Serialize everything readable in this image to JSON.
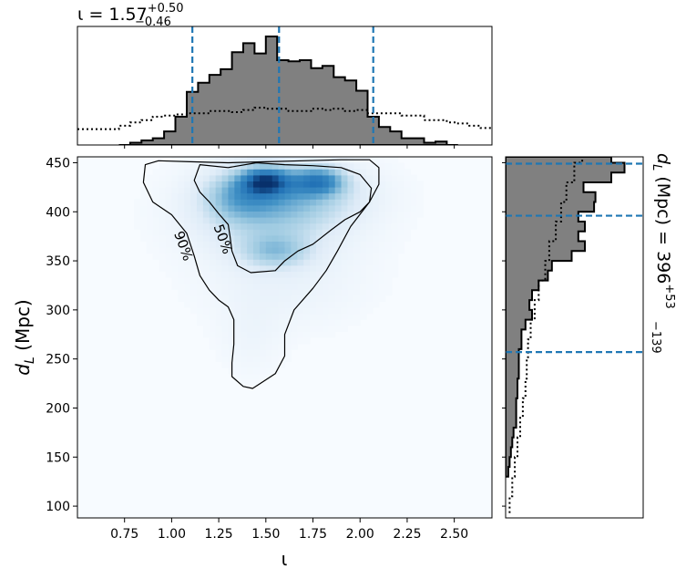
{
  "chart_data": {
    "type": "heatmap",
    "joint": {
      "xlabel": "ι",
      "ylabel_var": "d",
      "ylabel_sub": "L",
      "ylabel_unit": " (Mpc)",
      "xlim": [
        0.5,
        2.7
      ],
      "ylim": [
        88,
        456
      ],
      "xticks": [
        "0.75",
        "1.00",
        "1.25",
        "1.50",
        "1.75",
        "2.00",
        "2.25",
        "2.50"
      ],
      "yticks": [
        "100",
        "150",
        "200",
        "250",
        "300",
        "350",
        "400",
        "450"
      ],
      "contours": [
        {
          "label": "50%",
          "points": [
            [
              1.15,
              448
            ],
            [
              1.3,
              445
            ],
            [
              1.45,
              450
            ],
            [
              1.6,
              448
            ],
            [
              1.75,
              447
            ],
            [
              1.9,
              445
            ],
            [
              2.0,
              438
            ],
            [
              2.06,
              424
            ],
            [
              2.05,
              410
            ],
            [
              2.0,
              400
            ],
            [
              1.92,
              392
            ],
            [
              1.85,
              382
            ],
            [
              1.75,
              367
            ],
            [
              1.67,
              360
            ],
            [
              1.6,
              350
            ],
            [
              1.55,
              340
            ],
            [
              1.42,
              338
            ],
            [
              1.35,
              345
            ],
            [
              1.32,
              360
            ],
            [
              1.31,
              375
            ],
            [
              1.3,
              387
            ],
            [
              1.25,
              398
            ],
            [
              1.2,
              410
            ],
            [
              1.15,
              420
            ],
            [
              1.12,
              432
            ],
            [
              1.15,
              448
            ]
          ]
        },
        {
          "label": "90%",
          "points": [
            [
              0.86,
              448
            ],
            [
              0.93,
              452
            ],
            [
              1.1,
              451
            ],
            [
              1.3,
              450
            ],
            [
              1.5,
              451
            ],
            [
              1.7,
              452
            ],
            [
              1.9,
              453
            ],
            [
              2.05,
              453
            ],
            [
              2.1,
              445
            ],
            [
              2.1,
              428
            ],
            [
              2.05,
              410
            ],
            [
              1.95,
              385
            ],
            [
              1.88,
              360
            ],
            [
              1.82,
              340
            ],
            [
              1.75,
              322
            ],
            [
              1.65,
              300
            ],
            [
              1.6,
              275
            ],
            [
              1.6,
              253
            ],
            [
              1.55,
              235
            ],
            [
              1.47,
              225
            ],
            [
              1.43,
              220
            ],
            [
              1.38,
              222
            ],
            [
              1.32,
              232
            ],
            [
              1.32,
              246
            ],
            [
              1.33,
              265
            ],
            [
              1.33,
              290
            ],
            [
              1.3,
              303
            ],
            [
              1.25,
              310
            ],
            [
              1.2,
              320
            ],
            [
              1.15,
              335
            ],
            [
              1.12,
              355
            ],
            [
              1.08,
              378
            ],
            [
              1.0,
              397
            ],
            [
              0.9,
              410
            ],
            [
              0.85,
              430
            ],
            [
              0.86,
              448
            ]
          ]
        }
      ],
      "density_blobs": [
        {
          "x": 1.5,
          "y": 432,
          "sx": 0.09,
          "sy": 10,
          "w": 1.0
        },
        {
          "x": 1.78,
          "y": 432,
          "sx": 0.1,
          "sy": 10,
          "w": 0.8
        },
        {
          "x": 1.62,
          "y": 418,
          "sx": 0.28,
          "sy": 22,
          "w": 0.55
        },
        {
          "x": 1.35,
          "y": 418,
          "sx": 0.13,
          "sy": 18,
          "w": 0.4
        },
        {
          "x": 1.55,
          "y": 360,
          "sx": 0.13,
          "sy": 12,
          "w": 0.45
        },
        {
          "x": 1.5,
          "y": 390,
          "sx": 0.28,
          "sy": 25,
          "w": 0.3
        },
        {
          "x": 1.6,
          "y": 330,
          "sx": 0.3,
          "sy": 35,
          "w": 0.14
        },
        {
          "x": 1.42,
          "y": 270,
          "sx": 0.12,
          "sy": 30,
          "w": 0.1
        },
        {
          "x": 1.55,
          "y": 400,
          "sx": 0.45,
          "sy": 60,
          "w": 0.06
        }
      ]
    },
    "iota_marginal": {
      "title_prefix": "ι = 1.57",
      "title_sup": "+0.50",
      "title_sub": "−0.46",
      "quantiles": [
        1.11,
        1.57,
        2.07
      ],
      "hist_edges": [
        0.72,
        0.78,
        0.84,
        0.9,
        0.96,
        1.02,
        1.08,
        1.14,
        1.2,
        1.26,
        1.32,
        1.38,
        1.44,
        1.5,
        1.56,
        1.62,
        1.68,
        1.74,
        1.8,
        1.86,
        1.92,
        1.98,
        2.04,
        2.1,
        2.16,
        2.22,
        2.28,
        2.34,
        2.4,
        2.46,
        2.52
      ],
      "hist_values": [
        0.0,
        0.02,
        0.04,
        0.06,
        0.12,
        0.25,
        0.47,
        0.55,
        0.62,
        0.67,
        0.82,
        0.9,
        0.81,
        0.96,
        0.75,
        0.74,
        0.75,
        0.68,
        0.7,
        0.6,
        0.57,
        0.48,
        0.25,
        0.16,
        0.12,
        0.06,
        0.06,
        0.02,
        0.03,
        0.0
      ],
      "prior_x": [
        0.5,
        0.72,
        0.78,
        0.84,
        0.9,
        0.96,
        1.02,
        1.08,
        1.14,
        1.2,
        1.26,
        1.32,
        1.38,
        1.44,
        1.5,
        1.56,
        1.62,
        1.68,
        1.74,
        1.8,
        1.86,
        1.92,
        1.98,
        2.04,
        2.1,
        2.16,
        2.22,
        2.28,
        2.34,
        2.4,
        2.46,
        2.52,
        2.58,
        2.64,
        2.7
      ],
      "prior_y": [
        0.14,
        0.17,
        0.2,
        0.22,
        0.25,
        0.26,
        0.27,
        0.28,
        0.28,
        0.3,
        0.3,
        0.29,
        0.31,
        0.33,
        0.32,
        0.32,
        0.3,
        0.3,
        0.32,
        0.31,
        0.32,
        0.3,
        0.31,
        0.28,
        0.28,
        0.28,
        0.26,
        0.26,
        0.22,
        0.22,
        0.2,
        0.19,
        0.17,
        0.15,
        0.14
      ],
      "ymax": 1.0
    },
    "dl_marginal": {
      "title_var": "d",
      "title_sub": "L",
      "title_rest": " (Mpc) = 396",
      "title_sup": "+53",
      "title_low": "−139",
      "quantiles": [
        257,
        396,
        449
      ],
      "hist_edges": [
        130,
        140,
        150,
        160,
        170,
        180,
        190,
        200,
        210,
        220,
        230,
        240,
        250,
        260,
        270,
        280,
        290,
        300,
        310,
        320,
        330,
        340,
        350,
        360,
        370,
        380,
        390,
        400,
        410,
        420,
        430,
        440,
        450,
        456
      ],
      "hist_values": [
        0.02,
        0.03,
        0.04,
        0.05,
        0.06,
        0.08,
        0.08,
        0.08,
        0.09,
        0.09,
        0.1,
        0.1,
        0.1,
        0.12,
        0.12,
        0.15,
        0.2,
        0.18,
        0.2,
        0.25,
        0.32,
        0.35,
        0.5,
        0.6,
        0.55,
        0.6,
        0.55,
        0.67,
        0.68,
        0.59,
        0.8,
        0.9,
        0.8
      ],
      "prior_y": [
        93,
        110,
        130,
        150,
        170,
        190,
        210,
        230,
        250,
        270,
        290,
        310,
        330,
        350,
        370,
        390,
        410,
        430,
        450,
        456
      ],
      "prior_x": [
        0.03,
        0.05,
        0.07,
        0.09,
        0.11,
        0.13,
        0.15,
        0.16,
        0.17,
        0.19,
        0.22,
        0.25,
        0.3,
        0.33,
        0.38,
        0.42,
        0.46,
        0.52,
        0.58,
        0.62
      ],
      "xmax": 1.0
    },
    "colors": {
      "hist_fill": "#808080",
      "hist_edge": "#000000",
      "quantile_line": "#1f77b4",
      "contour_line": "#000000",
      "cmap_low": "#f7fbff",
      "cmap_high": "#08306b"
    }
  }
}
